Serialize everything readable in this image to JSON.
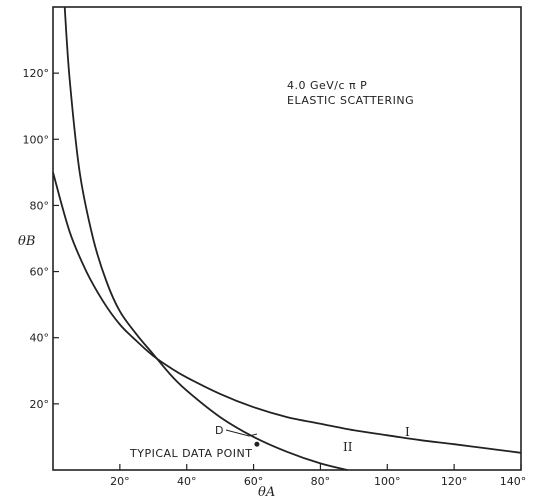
{
  "chart_data": {
    "type": "line",
    "title": "",
    "annotations": {
      "line1": "4.0 GeV/c π P",
      "line2": "ELASTIC SCATTERING",
      "data_point_label": "TYPICAL DATA POINT",
      "data_point_tag": "D"
    },
    "xlabel": "θA",
    "ylabel": "θB",
    "xlim": [
      0,
      140
    ],
    "ylim": [
      0,
      140
    ],
    "xticks": [
      {
        "value": 20,
        "label": "20°"
      },
      {
        "value": 40,
        "label": "40°"
      },
      {
        "value": 60,
        "label": "60°"
      },
      {
        "value": 80,
        "label": "80°"
      },
      {
        "value": 100,
        "label": "100°"
      },
      {
        "value": 120,
        "label": "120°"
      },
      {
        "value": 140,
        "label": "140°"
      }
    ],
    "yticks": [
      {
        "value": 20,
        "label": "20°"
      },
      {
        "value": 40,
        "label": "40°"
      },
      {
        "value": 60,
        "label": "60°"
      },
      {
        "value": 80,
        "label": "80°"
      },
      {
        "value": 100,
        "label": "100°"
      },
      {
        "value": 120,
        "label": "120°"
      }
    ],
    "series": [
      {
        "name": "I",
        "x": [
          0,
          5,
          10,
          15,
          20,
          25,
          30,
          35,
          40,
          50,
          60,
          70,
          80,
          90,
          100,
          110,
          120,
          130,
          140
        ],
        "y": [
          90,
          72,
          60,
          51,
          44,
          39,
          34.5,
          31,
          28,
          23,
          19,
          16,
          14,
          12,
          10.5,
          9,
          7.8,
          6.5,
          5.2
        ]
      },
      {
        "name": "II",
        "x": [
          3.5,
          5,
          8,
          12,
          16,
          20,
          25,
          30,
          35,
          40,
          50,
          60,
          70,
          80,
          88
        ],
        "y": [
          140,
          118,
          90,
          70,
          57,
          48,
          41,
          35,
          29,
          24,
          16,
          10,
          5.5,
          2,
          0
        ]
      }
    ],
    "data_points": [
      {
        "x": 61,
        "y": 7.8
      }
    ],
    "grid": false
  }
}
